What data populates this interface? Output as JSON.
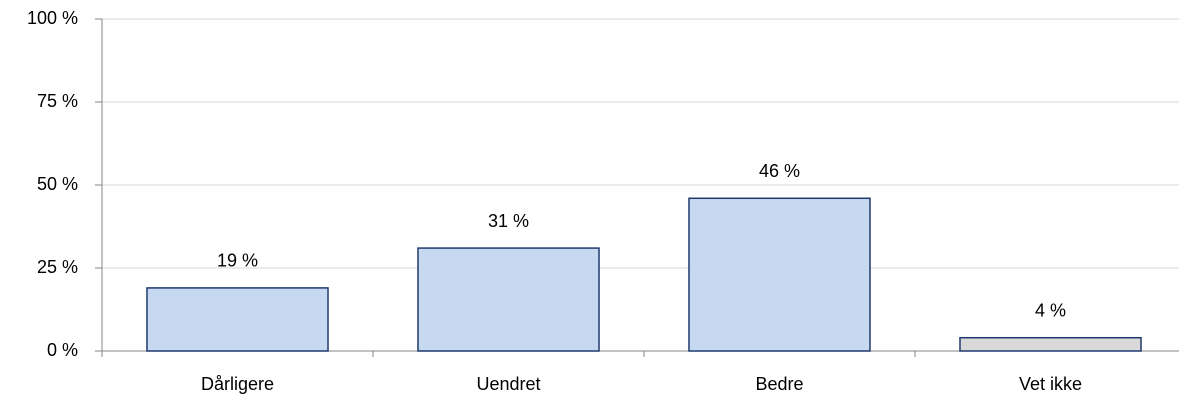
{
  "chart_data": {
    "type": "bar",
    "categories": [
      "Dårligere",
      "Uendret",
      "Bedre",
      "Vet ikke"
    ],
    "values": [
      19,
      31,
      46,
      4
    ],
    "value_labels": [
      "19 %",
      "31 %",
      "46 %",
      "4 %"
    ],
    "colors": [
      "#c6d9f1",
      "#c6d9f1",
      "#c6d9f1",
      "#d9d9d9"
    ],
    "edgecolor": "#1f3a6e",
    "ylim": [
      0,
      100
    ],
    "yticks": [
      {
        "value": 0,
        "label": "0 %"
      },
      {
        "value": 25,
        "label": "25 %"
      },
      {
        "value": 50,
        "label": "50 %"
      },
      {
        "value": 75,
        "label": "75 %"
      },
      {
        "value": 100,
        "label": "100 %"
      }
    ],
    "grid": true
  }
}
